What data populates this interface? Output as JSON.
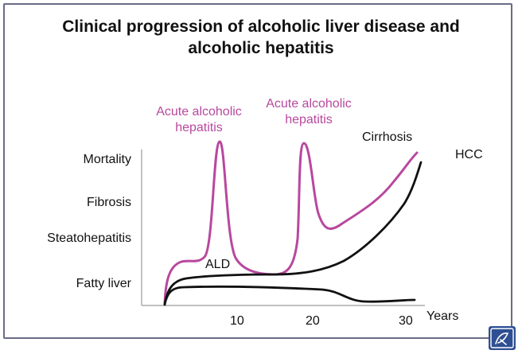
{
  "title_line1": "Clinical progression of alcoholic liver disease and",
  "title_line2": "alcoholic hepatitis",
  "y_labels": [
    "Mortality",
    "Fibrosis",
    "Steatohepatitis",
    "Fatty liver"
  ],
  "annotations": {
    "acute1": [
      "Acute alcoholic",
      "hepatitis"
    ],
    "acute2": [
      "Acute alcoholic",
      "hepatitis"
    ],
    "cirrhosis": "Cirrhosis",
    "hcc": "HCC",
    "ald": "ALD"
  },
  "x_axis": {
    "ticks": [
      "10",
      "20",
      "30"
    ],
    "unit": "Years"
  },
  "colors": {
    "ah_curve": "#b8489e",
    "ald_curve": "#111111",
    "frame": "#6a6a88"
  },
  "icons": {
    "logo": "publisher-logo-icon"
  }
}
